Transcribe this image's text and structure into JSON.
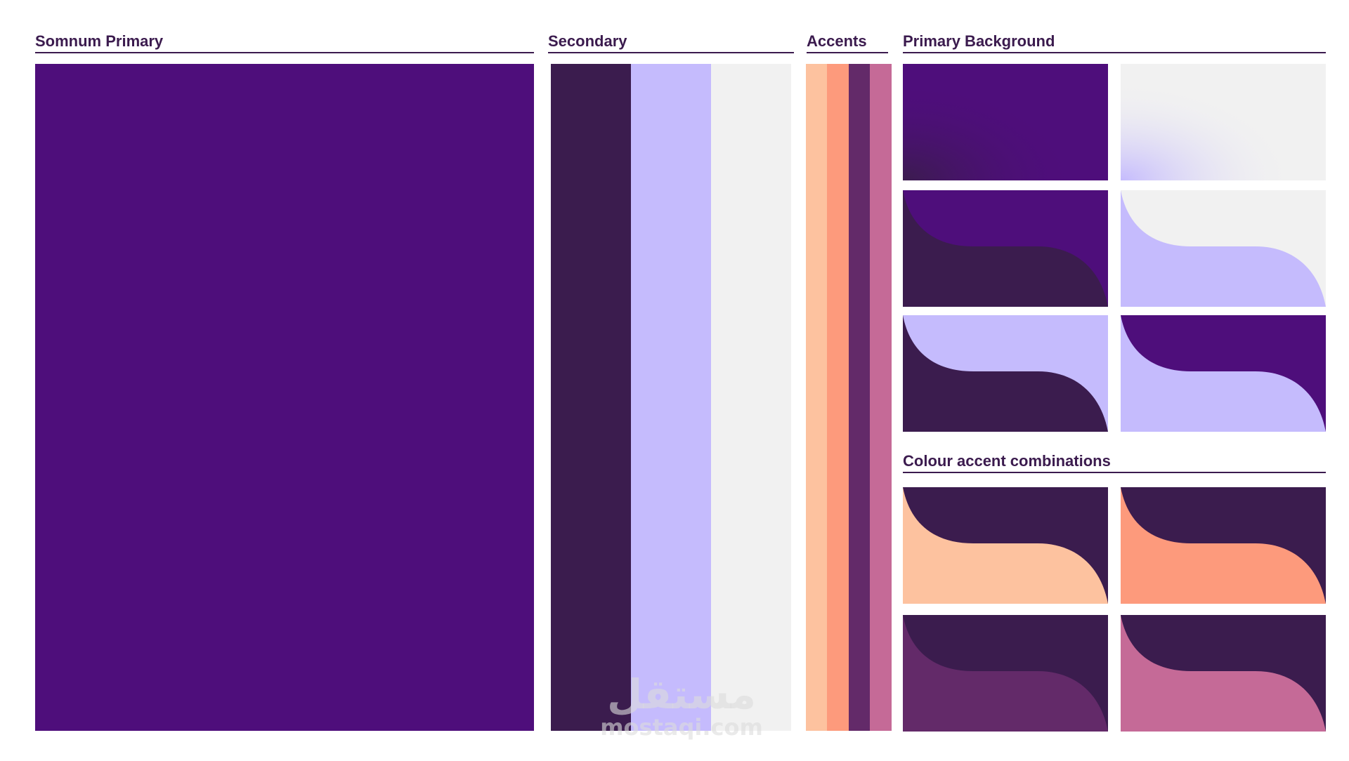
{
  "headings": {
    "primary": "Somnum Primary",
    "secondary": "Secondary",
    "accents": "Accents",
    "primary_background": "Primary Background",
    "combinations": "Colour accent combinations"
  },
  "colors": {
    "primary": "#4e0e7b",
    "secondary": [
      "#3b1c4e",
      "#c5bbfd",
      "#f1f1f1"
    ],
    "accents": [
      "#fdc29f",
      "#fd9a7c",
      "#632a69",
      "#c56a97"
    ],
    "heading_text": "#3b1b4e"
  },
  "background_tiles": [
    {
      "top": "#4e0e7b",
      "bottom": "#3b1c4e",
      "style": "gradient-dark"
    },
    {
      "top": "#f1f1f1",
      "bottom": "#c5bbfd",
      "style": "gradient-light"
    },
    {
      "top": "#4e0e7b",
      "bottom": "#3b1c4e",
      "style": "wave"
    },
    {
      "top": "#f1f1f1",
      "bottom": "#c5bbfd",
      "style": "wave"
    },
    {
      "top": "#c5bbfd",
      "bottom": "#3b1c4e",
      "style": "wave"
    },
    {
      "top": "#4e0e7b",
      "bottom": "#c5bbfd",
      "style": "wave"
    }
  ],
  "accent_tiles": [
    {
      "top": "#3b1c4e",
      "bottom": "#fdc29f",
      "style": "wave"
    },
    {
      "top": "#3b1c4e",
      "bottom": "#fd9a7c",
      "style": "wave"
    },
    {
      "top": "#3b1c4e",
      "bottom": "#632a69",
      "style": "wave"
    },
    {
      "top": "#3b1c4e",
      "bottom": "#c56a97",
      "style": "wave"
    }
  ],
  "watermark": {
    "arabic": "مستقل",
    "latin": "mostaqi.com"
  }
}
